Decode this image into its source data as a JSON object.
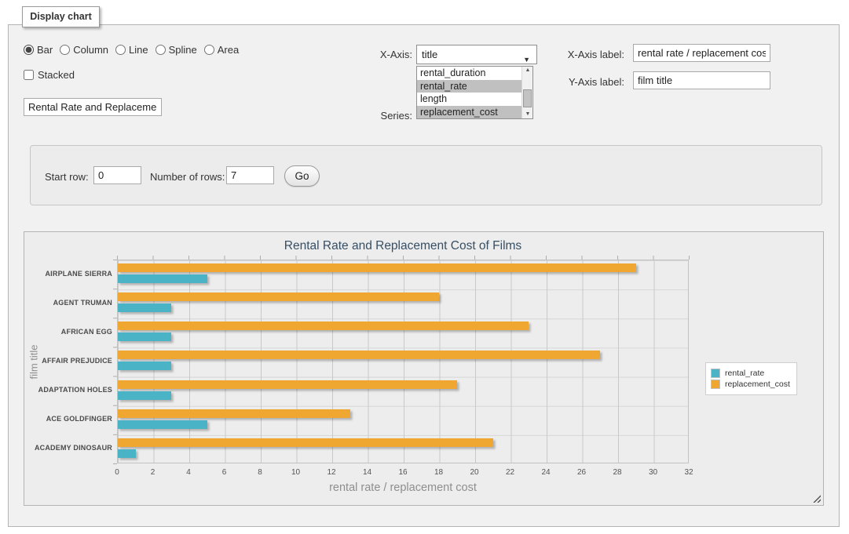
{
  "panel": {
    "tab_label": "Display chart"
  },
  "chart_type": {
    "options": [
      {
        "label": "Bar",
        "selected": true
      },
      {
        "label": "Column",
        "selected": false
      },
      {
        "label": "Line",
        "selected": false
      },
      {
        "label": "Spline",
        "selected": false
      },
      {
        "label": "Area",
        "selected": false
      }
    ]
  },
  "stacked": {
    "label": "Stacked",
    "checked": false
  },
  "title_input": {
    "value": "Rental Rate and Replacement Cost of Films"
  },
  "x_axis": {
    "caption": "X-Axis:",
    "selected_value": "title"
  },
  "series_picker": {
    "caption": "Series:",
    "options": [
      {
        "label": "rental_duration",
        "selected": false
      },
      {
        "label": "rental_rate",
        "selected": true
      },
      {
        "label": "length",
        "selected": false
      },
      {
        "label": "replacement_cost",
        "selected": true
      }
    ]
  },
  "x_axis_label": {
    "caption": "X-Axis label:",
    "value": "rental rate / replacement cost"
  },
  "y_axis_label": {
    "caption": "Y-Axis label:",
    "value": "film title"
  },
  "rows_panel": {
    "start_row_caption": "Start row:",
    "start_row_value": "0",
    "num_rows_caption": "Number of rows:",
    "num_rows_value": "7",
    "go_label": "Go"
  },
  "chart_data": {
    "type": "bar",
    "orientation": "horizontal",
    "title": "Rental Rate and Replacement Cost of Films",
    "xlabel": "rental rate / replacement cost",
    "ylabel": "film title",
    "xlim": [
      0,
      32
    ],
    "xticks": [
      0,
      2,
      4,
      6,
      8,
      10,
      12,
      14,
      16,
      18,
      20,
      22,
      24,
      26,
      28,
      30,
      32
    ],
    "grid": true,
    "legend_position": "right",
    "categories": [
      "AIRPLANE SIERRA",
      "AGENT TRUMAN",
      "AFRICAN EGG",
      "AFFAIR PREJUDICE",
      "ADAPTATION HOLES",
      "ACE GOLDFINGER",
      "ACADEMY DINOSAUR"
    ],
    "series": [
      {
        "name": "rental_rate",
        "color": "#4ab3c5",
        "values": [
          4.99,
          2.99,
          2.99,
          2.99,
          2.99,
          4.99,
          0.99
        ]
      },
      {
        "name": "replacement_cost",
        "color": "#f0a732",
        "values": [
          28.99,
          17.99,
          22.99,
          26.99,
          18.99,
          12.99,
          20.99
        ]
      }
    ]
  }
}
